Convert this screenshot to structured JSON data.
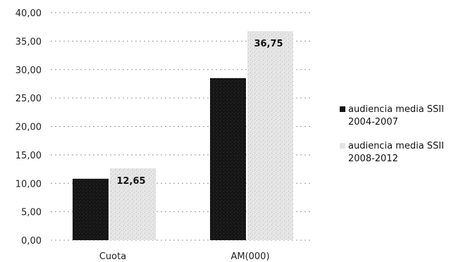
{
  "chart_data": {
    "type": "bar",
    "categories": [
      "Cuota",
      "AM(000)"
    ],
    "series": [
      {
        "name": "audiencia media SSII 2004-2007",
        "values": [
          10.8,
          28.5
        ],
        "color": "#141414"
      },
      {
        "name": "audiencia media SSII 2008-2012",
        "values": [
          12.65,
          36.75
        ],
        "color": "#e2e2e2"
      }
    ],
    "data_labels": [
      {
        "series": 1,
        "category": 0,
        "text": "12,65"
      },
      {
        "series": 1,
        "category": 1,
        "text": "36,75"
      }
    ],
    "yticks": [
      "0,00",
      "5,00",
      "10,00",
      "15,00",
      "20,00",
      "25,00",
      "30,00",
      "35,00",
      "40,00"
    ],
    "ylim": [
      0,
      40
    ],
    "grid": true,
    "legend_position": "right",
    "legend": [
      {
        "line1": "audiencia media SSII",
        "line2": "2004-2007"
      },
      {
        "line1": "audiencia media SSII",
        "line2": "2008-2012"
      }
    ],
    "title": "",
    "xlabel": "",
    "ylabel": ""
  }
}
